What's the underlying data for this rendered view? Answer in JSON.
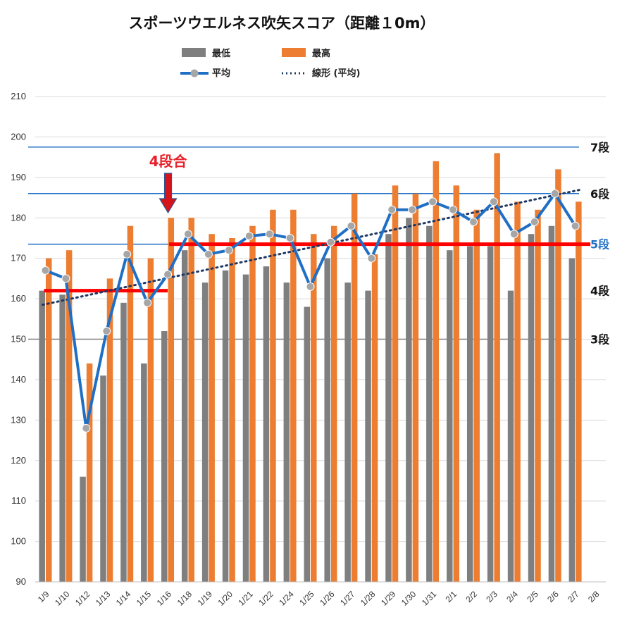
{
  "chart_data": {
    "type": "bar",
    "title": "スポーツウエルネス吹矢スコア（距離１0m）",
    "ylim": [
      90,
      210
    ],
    "yticks": [
      90,
      100,
      110,
      120,
      130,
      140,
      150,
      160,
      170,
      180,
      190,
      200,
      210
    ],
    "grid": true,
    "categories": [
      "1/9",
      "1/10",
      "1/12",
      "1/13",
      "1/14",
      "1/15",
      "1/16",
      "1/18",
      "1/19",
      "1/20",
      "1/21",
      "1/22",
      "1/24",
      "1/25",
      "1/26",
      "1/27",
      "1/28",
      "1/29",
      "1/30",
      "1/31",
      "2/1",
      "2/2",
      "2/3",
      "2/4",
      "2/5",
      "2/6",
      "2/7",
      "2/8"
    ],
    "series": [
      {
        "name": "最低",
        "type": "bar",
        "color": "#7f7f7f",
        "values": [
          162,
          161,
          116,
          141,
          159,
          144,
          152,
          172,
          164,
          167,
          166,
          168,
          164,
          158,
          170,
          164,
          162,
          176,
          180,
          178,
          172,
          173,
          173,
          162,
          176,
          178,
          170,
          null
        ]
      },
      {
        "name": "最高",
        "type": "bar",
        "color": "#ed7d31",
        "values": [
          170,
          172,
          144,
          165,
          178,
          170,
          180,
          180,
          176,
          175,
          178,
          182,
          182,
          176,
          178,
          186,
          171,
          188,
          186,
          194,
          188,
          182,
          196,
          184,
          182,
          192,
          184,
          null
        ]
      },
      {
        "name": "平均",
        "type": "line",
        "color": "#1f6fc5",
        "marker_color": "#a6a6a6",
        "values": [
          167,
          165,
          128,
          152,
          171,
          159,
          166,
          176,
          171,
          172,
          175.5,
          176,
          175,
          163,
          174,
          178,
          170,
          182,
          182,
          184,
          182,
          179,
          184,
          176,
          179,
          186,
          178,
          null
        ]
      },
      {
        "name": "線形 (平均)",
        "type": "trendline",
        "color": "#1f3864",
        "start": 158.5,
        "end": 187
      }
    ],
    "reference_lines": [
      {
        "label": "7段",
        "value": 197.5,
        "color": "#1f6fc5",
        "label_color": "#111111"
      },
      {
        "label": "6段",
        "value": 186,
        "color": "#1f6fc5",
        "label_color": "#111111"
      },
      {
        "label": "5段",
        "value": 173.5,
        "color": "#1f6fc5",
        "label_color": "#1f6fc5"
      },
      {
        "label": "4段",
        "value": 162,
        "color": null,
        "label_color": "#111111"
      },
      {
        "label": "3段",
        "value": 150,
        "color": "#7f7f7f",
        "label_color": "#111111"
      }
    ],
    "highlight_segments": [
      {
        "value": 162,
        "from_index": 0,
        "to_index": 6,
        "color": "#ff0000"
      },
      {
        "value": 173.5,
        "from_index": 6,
        "to_index": 27,
        "color": "#ff0000"
      }
    ],
    "annotation": {
      "text": "4段合",
      "category_index": 6,
      "color": "#e8202a"
    },
    "legend_position": "top"
  }
}
